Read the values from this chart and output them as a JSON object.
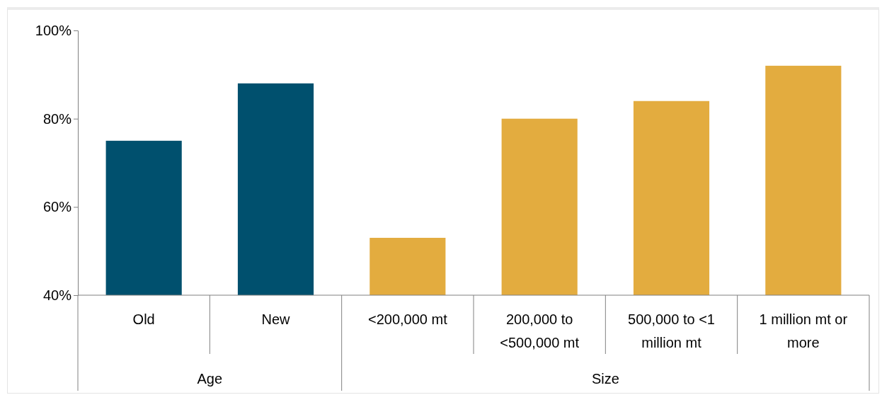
{
  "chart_data": {
    "type": "bar",
    "categories": [
      "Old",
      "New",
      "<200,000 mt",
      "200,000 to <500,000 mt",
      "500,000 to <1 million mt",
      "1 million mt or more"
    ],
    "values": [
      75,
      88,
      53,
      80,
      84,
      92
    ],
    "colors": [
      "#00506e",
      "#00506e",
      "#e3ac3f",
      "#e3ac3f",
      "#e3ac3f",
      "#e3ac3f"
    ],
    "annotations": [
      "Age",
      "Size"
    ],
    "ylim": [
      40,
      100
    ],
    "yticks": [
      {
        "value": 40,
        "label": "40%"
      },
      {
        "value": 60,
        "label": "60%"
      },
      {
        "value": 80,
        "label": "80%"
      },
      {
        "value": 100,
        "label": "100%"
      }
    ],
    "grid": false
  }
}
